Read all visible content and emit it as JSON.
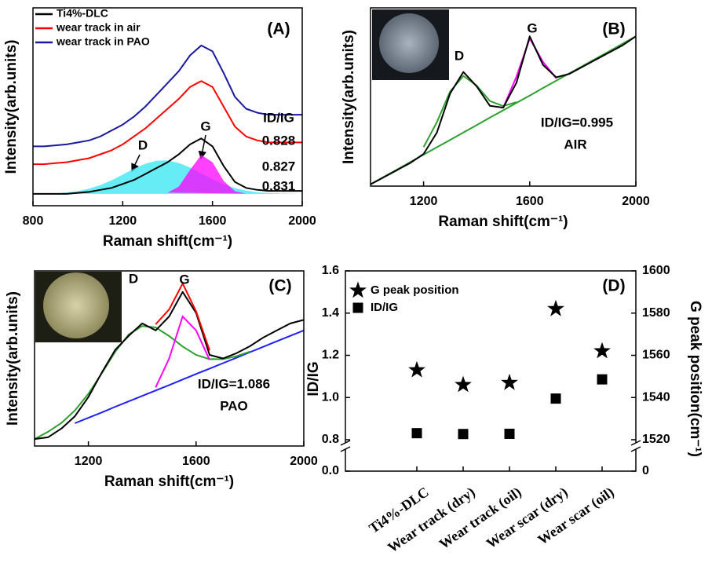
{
  "chart_data": [
    {
      "type": "line",
      "title": "(A)",
      "xlabel": "Raman shift(cm⁻¹)",
      "ylabel": "Intensity(arb.units)",
      "xlim": [
        800,
        2000
      ],
      "xticks": [
        800,
        1200,
        1600,
        2000
      ],
      "ylim": [
        0,
        100
      ],
      "legend": "upper left",
      "x": [
        800,
        850,
        900,
        950,
        1000,
        1050,
        1100,
        1150,
        1200,
        1250,
        1300,
        1350,
        1400,
        1450,
        1500,
        1550,
        1600,
        1650,
        1700,
        1750,
        1800,
        1850,
        1900,
        1950,
        2000
      ],
      "fits": [
        {
          "color": "#33e6f0",
          "fill": true,
          "values": [
            6.0,
            6.1,
            6.3,
            6.7,
            7.4,
            8.6,
            10.4,
            12.8,
            15.7,
            18.7,
            21.2,
            22.7,
            22.9,
            21.6,
            19.3,
            16.3,
            13.4,
            10.8,
            8.9,
            7.6,
            6.8,
            6.4,
            6.2,
            6.1,
            6.0
          ]
        },
        {
          "color": "#ff00ff",
          "fill": true,
          "values": [
            null,
            null,
            null,
            null,
            null,
            null,
            null,
            null,
            null,
            null,
            null,
            null,
            6.6,
            9.7,
            18.1,
            25.7,
            22,
            12.5,
            7.3,
            6.1,
            null,
            null,
            null,
            null,
            null
          ]
        }
      ],
      "series": [
        {
          "name": "Ti4%-DLC",
          "color": "#000000",
          "values": [
            6,
            6,
            6,
            6,
            6.5,
            7,
            8,
            9,
            11,
            13,
            16,
            19,
            22,
            26,
            31,
            34,
            30,
            20,
            12,
            9,
            8,
            7.5,
            7.5,
            7.5,
            7.5
          ]
        },
        {
          "name": "wear track in air",
          "color": "#ff0000",
          "values": [
            21,
            21,
            21.5,
            22,
            23,
            24,
            26,
            28,
            31,
            35,
            39,
            44,
            49,
            54,
            60,
            63,
            60,
            50,
            40,
            35,
            33,
            32,
            32,
            32,
            32
          ]
        },
        {
          "name": "wear track in PAO",
          "color": "#1a1aa0",
          "values": [
            30,
            30,
            30.5,
            31,
            32,
            33,
            35,
            38,
            41,
            45,
            50,
            56,
            62,
            68,
            76,
            81,
            78,
            67,
            55,
            49,
            47,
            46,
            46,
            46,
            46
          ]
        }
      ],
      "annotations": [
        "ID/IG",
        "0.828",
        "0.827",
        "0.831",
        "D",
        "G"
      ]
    },
    {
      "type": "line",
      "title": "(B)",
      "xlabel": "Raman shift(cm⁻¹)",
      "ylabel": "Intensity(arb.units)",
      "xlim": [
        1000,
        2000
      ],
      "xticks": [
        1200,
        1600,
        2000
      ],
      "ylim": [
        0,
        100
      ],
      "x": [
        1000,
        1050,
        1100,
        1150,
        1200,
        1250,
        1300,
        1350,
        1400,
        1450,
        1500,
        1550,
        1600,
        1650,
        1700,
        1750,
        1800,
        1850,
        1900,
        1950,
        2000
      ],
      "fits": [
        {
          "color": "#2ea02e",
          "values": [
            1,
            5.2,
            9.3,
            13.5,
            17.6,
            21.8,
            25.9,
            30.1,
            34.2,
            38.4,
            42.5,
            46.7,
            50.8,
            55,
            59.1,
            63.3,
            67.4,
            71.6,
            75.7,
            79.9,
            84
          ]
        },
        {
          "color": "#2ea02e",
          "values": [
            null,
            null,
            null,
            null,
            21.9,
            35.8,
            53.1,
            61.8,
            56.4,
            47.7,
            44.9,
            47.1,
            null,
            null,
            null,
            null,
            null,
            null,
            null,
            null,
            null
          ]
        },
        {
          "color": "#ff00ff",
          "values": [
            null,
            null,
            null,
            null,
            null,
            null,
            null,
            null,
            null,
            null,
            43.9,
            61.4,
            82.8,
            69.7,
            60.5,
            null,
            null,
            null,
            null,
            null,
            null
          ]
        }
      ],
      "series": [
        {
          "color": "#000000",
          "values": [
            1,
            5,
            9,
            13,
            18,
            30,
            52,
            64,
            56,
            45,
            44,
            58,
            84,
            68,
            61,
            63,
            67,
            71,
            75,
            79,
            84
          ]
        }
      ],
      "annotations": [
        "D",
        "G",
        "ID/IG=0.995",
        "AIR"
      ]
    },
    {
      "type": "line",
      "title": "(C)",
      "xlabel": "Raman shift(cm⁻¹)",
      "ylabel": "Intensity(arb.units)",
      "xlim": [
        1000,
        2000
      ],
      "xticks": [
        1200,
        1600,
        2000
      ],
      "ylim": [
        0,
        100
      ],
      "x": [
        1000,
        1050,
        1100,
        1150,
        1200,
        1250,
        1300,
        1350,
        1400,
        1450,
        1500,
        1550,
        1600,
        1650,
        1700,
        1750,
        1800,
        1850,
        1900,
        1950,
        2000
      ],
      "fits": [
        {
          "color": "#2020ff",
          "values": [
            null,
            null,
            null,
            13,
            16.1,
            19.2,
            22.4,
            25.5,
            28.6,
            31.7,
            34.8,
            38,
            41.1,
            44.2,
            47.3,
            50.4,
            53.6,
            56.7,
            59.8,
            62.9,
            66
          ]
        },
        {
          "color": "#2ea02e",
          "values": [
            4.0,
            8.1,
            13.2,
            20.3,
            29.8,
            41.6,
            53.9,
            63.7,
            68.5,
            67.7,
            62.8,
            56.8,
            52,
            49.6,
            49.6,
            51.3,
            53.9,
            null,
            null,
            null,
            null
          ]
        },
        {
          "color": "#ff00ff",
          "values": [
            null,
            null,
            null,
            null,
            null,
            null,
            null,
            null,
            null,
            33.5,
            50,
            74,
            66,
            49.2,
            null,
            null,
            null,
            null,
            null,
            null,
            null
          ]
        }
      ],
      "series": [
        {
          "color": "#000000",
          "values": [
            4,
            5,
            10,
            17,
            28,
            42,
            55,
            63,
            70,
            66,
            74,
            88,
            76,
            52,
            50,
            53,
            57,
            62,
            66,
            70,
            72
          ]
        },
        {
          "color": "#ff0000",
          "values": [
            null,
            null,
            null,
            null,
            null,
            null,
            null,
            null,
            null,
            69.5,
            78,
            92.8,
            76.9,
            54.6,
            null,
            null,
            null,
            null,
            null,
            null,
            null
          ]
        }
      ],
      "annotations": [
        "D",
        "G",
        "ID/IG=1.086",
        "PAO"
      ]
    },
    {
      "type": "scatter",
      "title": "(D)",
      "ylabel": "ID/IG",
      "y2label": "G peak position(cm⁻¹)",
      "categories": [
        "Ti4%-DLC",
        "Wear track (dry)",
        "Wear track (oil)",
        "Wear scar (dry)",
        "Wear scar (oil)"
      ],
      "ylim": [
        0,
        1.6
      ],
      "yticks": [
        {
          "value": 0,
          "label": "0.0"
        },
        0.8,
        {
          "value": 1,
          "label": "1.0"
        },
        1.2,
        1.4,
        1.6
      ],
      "ybreak": [
        0,
        0.8
      ],
      "y2lim": [
        0,
        1600
      ],
      "y2ticks": [
        0,
        1520,
        1540,
        1560,
        1580,
        1600
      ],
      "y2break": [
        0,
        1520
      ],
      "legend": "upper left",
      "series": [
        {
          "name": "G peak position",
          "marker": "star",
          "color": "#000000",
          "axis": "y2",
          "values": [
            1553,
            1546,
            1547,
            1582,
            1562
          ]
        },
        {
          "name": "ID/IG",
          "marker": "square",
          "color": "#000000",
          "values": [
            0.831,
            0.827,
            0.828,
            0.995,
            1.086
          ]
        }
      ]
    }
  ]
}
